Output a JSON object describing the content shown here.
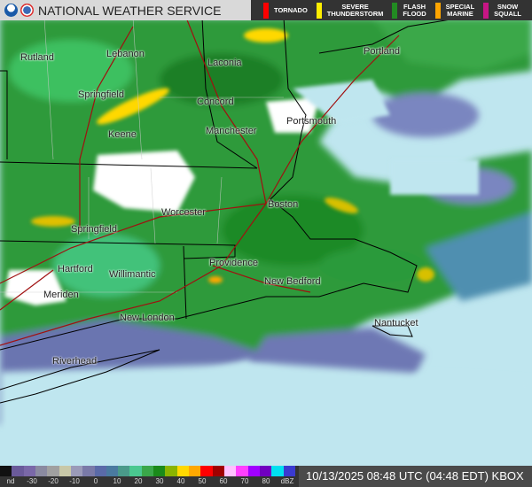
{
  "header": {
    "title": "NATIONAL WEATHER SERVICE",
    "logos": [
      "noaa-logo",
      "nws-logo"
    ]
  },
  "warnings": [
    {
      "label": "TORNADO",
      "color": "#ff0000"
    },
    {
      "label": "SEVERE\nTHUNDERSTORM",
      "color": "#ffee00"
    },
    {
      "label": "FLASH\nFLOOD",
      "color": "#228b22"
    },
    {
      "label": "SPECIAL\nMARINE",
      "color": "#ffa500"
    },
    {
      "label": "SNOW\nSQUALL",
      "color": "#c71585"
    }
  ],
  "cities": [
    "Rutland",
    "Lebanon",
    "Laconia",
    "Portland",
    "Springfield",
    "Keene",
    "Concord",
    "Manchester",
    "Portsmouth",
    "Worcester",
    "Boston",
    "Springfield",
    "Hartford",
    "Willimantic",
    "Providence",
    "New Bedford",
    "Meriden",
    "New London",
    "Nantucket",
    "Riverhead"
  ],
  "legend": {
    "ticks": [
      "nd",
      "-30",
      "-20",
      "-10",
      "0",
      "10",
      "20",
      "30",
      "40",
      "50",
      "60",
      "70",
      "80",
      "dBZ"
    ],
    "colors": [
      "#111111",
      "#6a5a9a",
      "#7a68a8",
      "#8a8aa0",
      "#a0a0a0",
      "#c8c8a8",
      "#9a9ab8",
      "#7a7aa8",
      "#5a6aa8",
      "#4a7aa0",
      "#4a9a8a",
      "#4ac890",
      "#3aa84a",
      "#1a8a1a",
      "#8ab400",
      "#ffd800",
      "#ffa800",
      "#ff0000",
      "#a00000",
      "#ffc0ff",
      "#ff40ff",
      "#a000ff",
      "#7000c0",
      "#00e0f0",
      "#3a3ad0"
    ]
  },
  "timestamp": "10/13/2025 08:48 UTC (04:48 EDT) KBOX"
}
